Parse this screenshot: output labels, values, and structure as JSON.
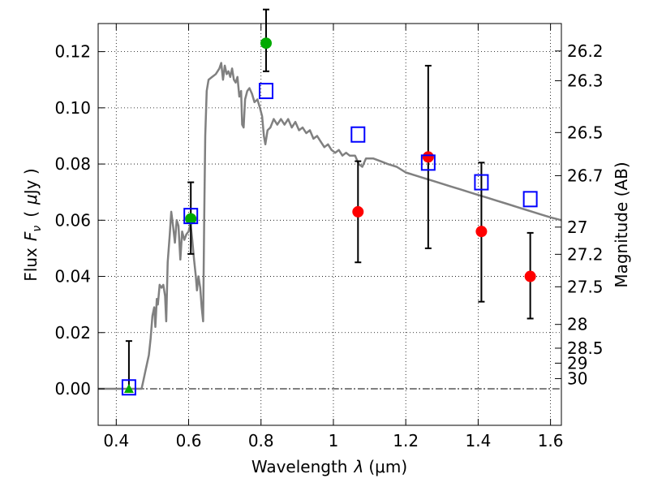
{
  "chart_data": {
    "type": "scatter",
    "xlabel_text": "Wavelength",
    "xlabel_lambda": "λ",
    "xlabel_units": "(μm)",
    "ylabel_text": "Flux",
    "ylabel_sym": "F",
    "ylabel_sub": "ν",
    "ylabel_units_open": "(",
    "ylabel_units_mu": "μ",
    "ylabel_units_rest": "Jy )",
    "y2label": "Magnitude (AB)",
    "xlim": [
      0.35,
      1.63
    ],
    "ylim": [
      -0.013,
      0.13
    ],
    "x_ticks": [
      {
        "value": 0.4,
        "label": "0.4"
      },
      {
        "value": 0.6,
        "label": "0.6"
      },
      {
        "value": 0.8,
        "label": "0.8"
      },
      {
        "value": 1.0,
        "label": "1"
      },
      {
        "value": 1.2,
        "label": "1.2"
      },
      {
        "value": 1.4,
        "label": "1.4"
      },
      {
        "value": 1.6,
        "label": "1.6"
      }
    ],
    "y_ticks": [
      {
        "value": 0.0,
        "label": "0.00"
      },
      {
        "value": 0.02,
        "label": "0.02"
      },
      {
        "value": 0.04,
        "label": "0.04"
      },
      {
        "value": 0.06,
        "label": "0.06"
      },
      {
        "value": 0.08,
        "label": "0.08"
      },
      {
        "value": 0.1,
        "label": "0.10"
      },
      {
        "value": 0.12,
        "label": "0.12"
      }
    ],
    "mag_ticks": [
      {
        "value": 26.2,
        "label": "26.2"
      },
      {
        "value": 26.3,
        "label": "26.3"
      },
      {
        "value": 26.5,
        "label": "26.5"
      },
      {
        "value": 26.7,
        "label": "26.7"
      },
      {
        "value": 27.0,
        "label": "27"
      },
      {
        "value": 27.2,
        "label": "27.2"
      },
      {
        "value": 27.5,
        "label": "27.5"
      },
      {
        "value": 28.0,
        "label": "28"
      },
      {
        "value": 28.5,
        "label": "28.5"
      },
      {
        "value": 29.0,
        "label": "29"
      },
      {
        "value": 30.0,
        "label": "30"
      }
    ],
    "mag_zero_point": 23.9,
    "colors": {
      "model": "#808080",
      "box": "#0000ff",
      "green": "#00aa00",
      "red": "#ff0000",
      "errorbar": "#000000",
      "grid": "#000000"
    },
    "model_spectrum": [
      [
        0.35,
        0.0
      ],
      [
        0.46,
        0.0
      ],
      [
        0.47,
        0.0
      ],
      [
        0.475,
        0.003
      ],
      [
        0.48,
        0.006
      ],
      [
        0.49,
        0.012
      ],
      [
        0.495,
        0.018
      ],
      [
        0.5,
        0.026
      ],
      [
        0.505,
        0.029
      ],
      [
        0.508,
        0.022
      ],
      [
        0.512,
        0.032
      ],
      [
        0.515,
        0.03
      ],
      [
        0.52,
        0.037
      ],
      [
        0.525,
        0.036
      ],
      [
        0.53,
        0.037
      ],
      [
        0.535,
        0.033
      ],
      [
        0.538,
        0.024
      ],
      [
        0.542,
        0.045
      ],
      [
        0.548,
        0.055
      ],
      [
        0.552,
        0.063
      ],
      [
        0.557,
        0.058
      ],
      [
        0.562,
        0.052
      ],
      [
        0.567,
        0.06
      ],
      [
        0.572,
        0.058
      ],
      [
        0.577,
        0.046
      ],
      [
        0.582,
        0.056
      ],
      [
        0.588,
        0.053
      ],
      [
        0.594,
        0.055
      ],
      [
        0.6,
        0.056
      ],
      [
        0.605,
        0.059
      ],
      [
        0.61,
        0.053
      ],
      [
        0.615,
        0.046
      ],
      [
        0.62,
        0.04
      ],
      [
        0.623,
        0.035
      ],
      [
        0.627,
        0.04
      ],
      [
        0.632,
        0.036
      ],
      [
        0.636,
        0.029
      ],
      [
        0.64,
        0.024
      ],
      [
        0.643,
        0.06
      ],
      [
        0.646,
        0.09
      ],
      [
        0.65,
        0.106
      ],
      [
        0.655,
        0.11
      ],
      [
        0.665,
        0.111
      ],
      [
        0.675,
        0.112
      ],
      [
        0.685,
        0.114
      ],
      [
        0.69,
        0.116
      ],
      [
        0.695,
        0.11
      ],
      [
        0.7,
        0.115
      ],
      [
        0.705,
        0.112
      ],
      [
        0.71,
        0.113
      ],
      [
        0.715,
        0.111
      ],
      [
        0.72,
        0.114
      ],
      [
        0.725,
        0.11
      ],
      [
        0.73,
        0.109
      ],
      [
        0.735,
        0.111
      ],
      [
        0.74,
        0.104
      ],
      [
        0.745,
        0.106
      ],
      [
        0.748,
        0.094
      ],
      [
        0.752,
        0.093
      ],
      [
        0.756,
        0.103
      ],
      [
        0.762,
        0.106
      ],
      [
        0.768,
        0.107
      ],
      [
        0.775,
        0.105
      ],
      [
        0.782,
        0.102
      ],
      [
        0.79,
        0.103
      ],
      [
        0.797,
        0.1
      ],
      [
        0.803,
        0.097
      ],
      [
        0.808,
        0.09
      ],
      [
        0.812,
        0.087
      ],
      [
        0.818,
        0.092
      ],
      [
        0.826,
        0.093
      ],
      [
        0.835,
        0.096
      ],
      [
        0.845,
        0.094
      ],
      [
        0.855,
        0.096
      ],
      [
        0.865,
        0.094
      ],
      [
        0.875,
        0.096
      ],
      [
        0.885,
        0.093
      ],
      [
        0.895,
        0.095
      ],
      [
        0.905,
        0.092
      ],
      [
        0.915,
        0.093
      ],
      [
        0.925,
        0.091
      ],
      [
        0.935,
        0.092
      ],
      [
        0.945,
        0.089
      ],
      [
        0.955,
        0.09
      ],
      [
        0.965,
        0.088
      ],
      [
        0.975,
        0.086
      ],
      [
        0.985,
        0.087
      ],
      [
        0.995,
        0.085
      ],
      [
        1.005,
        0.084
      ],
      [
        1.015,
        0.085
      ],
      [
        1.025,
        0.083
      ],
      [
        1.035,
        0.084
      ],
      [
        1.045,
        0.083
      ],
      [
        1.06,
        0.083
      ],
      [
        1.07,
        0.08
      ],
      [
        1.08,
        0.079
      ],
      [
        1.09,
        0.082
      ],
      [
        1.11,
        0.082
      ],
      [
        1.13,
        0.081
      ],
      [
        1.15,
        0.08
      ],
      [
        1.175,
        0.079
      ],
      [
        1.2,
        0.077
      ],
      [
        1.225,
        0.076
      ],
      [
        1.25,
        0.075
      ],
      [
        1.275,
        0.074
      ],
      [
        1.3,
        0.073
      ],
      [
        1.325,
        0.072
      ],
      [
        1.35,
        0.071
      ],
      [
        1.375,
        0.07
      ],
      [
        1.4,
        0.069
      ],
      [
        1.425,
        0.068
      ],
      [
        1.45,
        0.067
      ],
      [
        1.475,
        0.066
      ],
      [
        1.5,
        0.065
      ],
      [
        1.525,
        0.064
      ],
      [
        1.55,
        0.063
      ],
      [
        1.575,
        0.062
      ],
      [
        1.6,
        0.061
      ],
      [
        1.63,
        0.06
      ]
    ],
    "model_photometry": [
      {
        "x": 0.435,
        "y": 0.0005
      },
      {
        "x": 0.606,
        "y": 0.0615
      },
      {
        "x": 0.814,
        "y": 0.106
      },
      {
        "x": 1.068,
        "y": 0.0905
      },
      {
        "x": 1.262,
        "y": 0.0805
      },
      {
        "x": 1.409,
        "y": 0.0735
      },
      {
        "x": 1.544,
        "y": 0.0675
      }
    ],
    "observed": [
      {
        "x": 0.435,
        "y": 0.0,
        "err_low": 0.0,
        "err_high": 0.017,
        "color": "green",
        "marker": "triangle"
      },
      {
        "x": 0.606,
        "y": 0.0605,
        "err_low": 0.0125,
        "err_high": 0.013,
        "color": "green",
        "marker": "circle"
      },
      {
        "x": 0.814,
        "y": 0.123,
        "err_low": 0.01,
        "err_high": 0.012,
        "color": "green",
        "marker": "circle"
      },
      {
        "x": 1.068,
        "y": 0.063,
        "err_low": 0.018,
        "err_high": 0.018,
        "color": "red",
        "marker": "circle"
      },
      {
        "x": 1.262,
        "y": 0.0825,
        "err_low": 0.0325,
        "err_high": 0.0325,
        "color": "red",
        "marker": "circle"
      },
      {
        "x": 1.409,
        "y": 0.056,
        "err_low": 0.025,
        "err_high": 0.0245,
        "color": "red",
        "marker": "circle"
      },
      {
        "x": 1.544,
        "y": 0.04,
        "err_low": 0.015,
        "err_high": 0.0155,
        "color": "red",
        "marker": "circle"
      }
    ]
  }
}
